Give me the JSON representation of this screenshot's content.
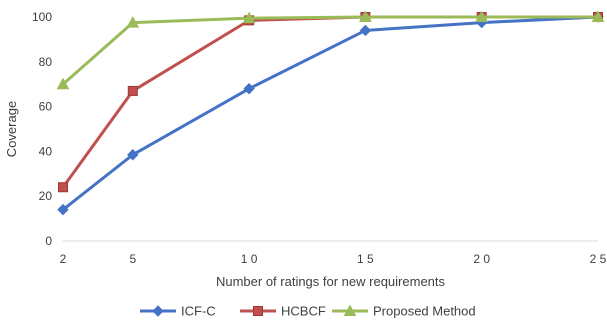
{
  "chart_data": {
    "type": "line",
    "title": "",
    "xlabel": "Number of ratings for new requirements",
    "ylabel": "Coverage",
    "x": [
      2,
      5,
      10,
      15,
      20,
      25
    ],
    "x_tick_labels": [
      "2",
      "5",
      "1 0",
      "1 5",
      "2 0",
      "2 5"
    ],
    "ylim": [
      0,
      100
    ],
    "y_ticks": [
      0,
      20,
      40,
      60,
      80,
      100
    ],
    "grid": false,
    "legend_position": "bottom",
    "series": [
      {
        "name": "ICF-C",
        "color": "#4472C4",
        "marker": "diamond",
        "values": [
          14,
          38.5,
          68,
          94,
          97.5,
          100
        ]
      },
      {
        "name": "HCBCF",
        "color": "#C0504D",
        "marker": "square",
        "values": [
          24,
          67,
          98.5,
          100,
          100,
          100
        ]
      },
      {
        "name": "Proposed Method",
        "color": "#9BBB59",
        "marker": "triangle",
        "values": [
          70,
          97.5,
          99.5,
          100,
          100,
          100
        ]
      }
    ]
  }
}
